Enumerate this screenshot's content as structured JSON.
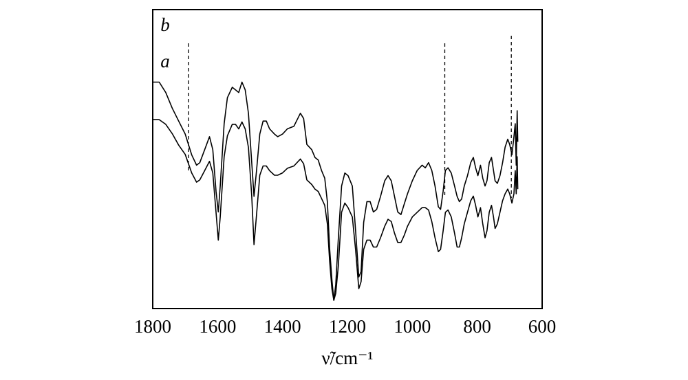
{
  "chart_data": {
    "type": "line",
    "xlabel": "ν̃/cm⁻¹",
    "xlim": [
      1800,
      600
    ],
    "x_reversed": true,
    "x_ticks": [
      1800,
      1600,
      1400,
      1200,
      1000,
      800,
      600
    ],
    "y_ticks_shown": false,
    "grid": false,
    "reference_lines": [
      1690,
      900,
      695
    ],
    "series": [
      {
        "name": "b",
        "points": [
          [
            1800,
            0.84
          ],
          [
            1780,
            0.84
          ],
          [
            1760,
            0.8
          ],
          [
            1740,
            0.74
          ],
          [
            1720,
            0.69
          ],
          [
            1700,
            0.64
          ],
          [
            1690,
            0.6
          ],
          [
            1680,
            0.56
          ],
          [
            1665,
            0.52
          ],
          [
            1655,
            0.53
          ],
          [
            1640,
            0.58
          ],
          [
            1625,
            0.63
          ],
          [
            1615,
            0.58
          ],
          [
            1605,
            0.42
          ],
          [
            1598,
            0.34
          ],
          [
            1592,
            0.44
          ],
          [
            1580,
            0.68
          ],
          [
            1570,
            0.78
          ],
          [
            1555,
            0.82
          ],
          [
            1545,
            0.81
          ],
          [
            1535,
            0.8
          ],
          [
            1525,
            0.84
          ],
          [
            1515,
            0.81
          ],
          [
            1505,
            0.72
          ],
          [
            1495,
            0.53
          ],
          [
            1488,
            0.4
          ],
          [
            1480,
            0.5
          ],
          [
            1470,
            0.64
          ],
          [
            1460,
            0.69
          ],
          [
            1450,
            0.69
          ],
          [
            1440,
            0.66
          ],
          [
            1425,
            0.64
          ],
          [
            1415,
            0.63
          ],
          [
            1400,
            0.64
          ],
          [
            1385,
            0.66
          ],
          [
            1365,
            0.67
          ],
          [
            1345,
            0.72
          ],
          [
            1335,
            0.7
          ],
          [
            1325,
            0.6
          ],
          [
            1310,
            0.58
          ],
          [
            1300,
            0.55
          ],
          [
            1290,
            0.54
          ],
          [
            1280,
            0.5
          ],
          [
            1270,
            0.47
          ],
          [
            1262,
            0.38
          ],
          [
            1255,
            0.2
          ],
          [
            1248,
            0.08
          ],
          [
            1242,
            0.0
          ],
          [
            1236,
            0.06
          ],
          [
            1228,
            0.24
          ],
          [
            1218,
            0.44
          ],
          [
            1208,
            0.49
          ],
          [
            1198,
            0.48
          ],
          [
            1185,
            0.44
          ],
          [
            1175,
            0.27
          ],
          [
            1165,
            0.09
          ],
          [
            1158,
            0.11
          ],
          [
            1150,
            0.3
          ],
          [
            1140,
            0.38
          ],
          [
            1130,
            0.38
          ],
          [
            1120,
            0.34
          ],
          [
            1110,
            0.35
          ],
          [
            1098,
            0.4
          ],
          [
            1085,
            0.46
          ],
          [
            1075,
            0.48
          ],
          [
            1065,
            0.46
          ],
          [
            1055,
            0.4
          ],
          [
            1045,
            0.34
          ],
          [
            1035,
            0.33
          ],
          [
            1025,
            0.37
          ],
          [
            1015,
            0.41
          ],
          [
            1000,
            0.46
          ],
          [
            985,
            0.5
          ],
          [
            970,
            0.52
          ],
          [
            960,
            0.51
          ],
          [
            950,
            0.53
          ],
          [
            940,
            0.5
          ],
          [
            930,
            0.44
          ],
          [
            920,
            0.36
          ],
          [
            913,
            0.35
          ],
          [
            905,
            0.42
          ],
          [
            898,
            0.5
          ],
          [
            890,
            0.51
          ],
          [
            880,
            0.49
          ],
          [
            870,
            0.44
          ],
          [
            862,
            0.4
          ],
          [
            855,
            0.38
          ],
          [
            848,
            0.39
          ],
          [
            840,
            0.44
          ],
          [
            830,
            0.48
          ],
          [
            820,
            0.53
          ],
          [
            812,
            0.55
          ],
          [
            805,
            0.51
          ],
          [
            798,
            0.48
          ],
          [
            790,
            0.52
          ],
          [
            783,
            0.47
          ],
          [
            776,
            0.44
          ],
          [
            770,
            0.46
          ],
          [
            763,
            0.53
          ],
          [
            756,
            0.55
          ],
          [
            750,
            0.5
          ],
          [
            745,
            0.46
          ],
          [
            738,
            0.45
          ],
          [
            730,
            0.48
          ],
          [
            722,
            0.53
          ],
          [
            714,
            0.59
          ],
          [
            706,
            0.62
          ],
          [
            700,
            0.6
          ],
          [
            693,
            0.56
          ],
          [
            687,
            0.63
          ],
          [
            683,
            0.68
          ],
          [
            680,
            0.52
          ],
          [
            677,
            0.73
          ],
          [
            675,
            0.61
          ]
        ]
      },
      {
        "name": "a",
        "points": [
          [
            1800,
            0.78
          ],
          [
            1780,
            0.78
          ],
          [
            1760,
            0.76
          ],
          [
            1740,
            0.72
          ],
          [
            1720,
            0.67
          ],
          [
            1700,
            0.63
          ],
          [
            1690,
            0.59
          ],
          [
            1680,
            0.55
          ],
          [
            1665,
            0.51
          ],
          [
            1655,
            0.52
          ],
          [
            1640,
            0.56
          ],
          [
            1625,
            0.6
          ],
          [
            1615,
            0.55
          ],
          [
            1605,
            0.38
          ],
          [
            1598,
            0.26
          ],
          [
            1592,
            0.36
          ],
          [
            1580,
            0.62
          ],
          [
            1570,
            0.71
          ],
          [
            1555,
            0.76
          ],
          [
            1545,
            0.76
          ],
          [
            1535,
            0.74
          ],
          [
            1525,
            0.77
          ],
          [
            1515,
            0.74
          ],
          [
            1505,
            0.66
          ],
          [
            1495,
            0.45
          ],
          [
            1488,
            0.24
          ],
          [
            1480,
            0.37
          ],
          [
            1470,
            0.54
          ],
          [
            1460,
            0.58
          ],
          [
            1450,
            0.58
          ],
          [
            1440,
            0.56
          ],
          [
            1425,
            0.54
          ],
          [
            1415,
            0.54
          ],
          [
            1400,
            0.55
          ],
          [
            1385,
            0.57
          ],
          [
            1365,
            0.58
          ],
          [
            1345,
            0.61
          ],
          [
            1335,
            0.59
          ],
          [
            1325,
            0.52
          ],
          [
            1310,
            0.5
          ],
          [
            1300,
            0.48
          ],
          [
            1290,
            0.47
          ],
          [
            1280,
            0.44
          ],
          [
            1270,
            0.41
          ],
          [
            1262,
            0.33
          ],
          [
            1255,
            0.17
          ],
          [
            1248,
            0.05
          ],
          [
            1242,
            0.0
          ],
          [
            1236,
            0.03
          ],
          [
            1228,
            0.15
          ],
          [
            1218,
            0.38
          ],
          [
            1208,
            0.42
          ],
          [
            1198,
            0.4
          ],
          [
            1185,
            0.36
          ],
          [
            1175,
            0.22
          ],
          [
            1165,
            0.05
          ],
          [
            1158,
            0.08
          ],
          [
            1150,
            0.22
          ],
          [
            1140,
            0.26
          ],
          [
            1130,
            0.26
          ],
          [
            1120,
            0.23
          ],
          [
            1110,
            0.23
          ],
          [
            1098,
            0.27
          ],
          [
            1085,
            0.32
          ],
          [
            1075,
            0.35
          ],
          [
            1065,
            0.34
          ],
          [
            1055,
            0.29
          ],
          [
            1045,
            0.25
          ],
          [
            1035,
            0.25
          ],
          [
            1025,
            0.28
          ],
          [
            1015,
            0.32
          ],
          [
            1000,
            0.36
          ],
          [
            985,
            0.38
          ],
          [
            970,
            0.4
          ],
          [
            960,
            0.4
          ],
          [
            950,
            0.39
          ],
          [
            940,
            0.34
          ],
          [
            930,
            0.27
          ],
          [
            920,
            0.21
          ],
          [
            913,
            0.22
          ],
          [
            905,
            0.3
          ],
          [
            898,
            0.38
          ],
          [
            890,
            0.39
          ],
          [
            880,
            0.36
          ],
          [
            870,
            0.29
          ],
          [
            862,
            0.23
          ],
          [
            855,
            0.23
          ],
          [
            848,
            0.27
          ],
          [
            840,
            0.33
          ],
          [
            830,
            0.38
          ],
          [
            820,
            0.43
          ],
          [
            812,
            0.45
          ],
          [
            805,
            0.41
          ],
          [
            798,
            0.36
          ],
          [
            790,
            0.4
          ],
          [
            783,
            0.33
          ],
          [
            776,
            0.27
          ],
          [
            770,
            0.3
          ],
          [
            763,
            0.38
          ],
          [
            756,
            0.41
          ],
          [
            750,
            0.36
          ],
          [
            745,
            0.31
          ],
          [
            738,
            0.33
          ],
          [
            730,
            0.38
          ],
          [
            722,
            0.43
          ],
          [
            714,
            0.46
          ],
          [
            706,
            0.48
          ],
          [
            700,
            0.46
          ],
          [
            693,
            0.42
          ],
          [
            687,
            0.46
          ],
          [
            683,
            0.56
          ],
          [
            680,
            0.46
          ],
          [
            677,
            0.62
          ],
          [
            675,
            0.48
          ]
        ]
      }
    ]
  }
}
